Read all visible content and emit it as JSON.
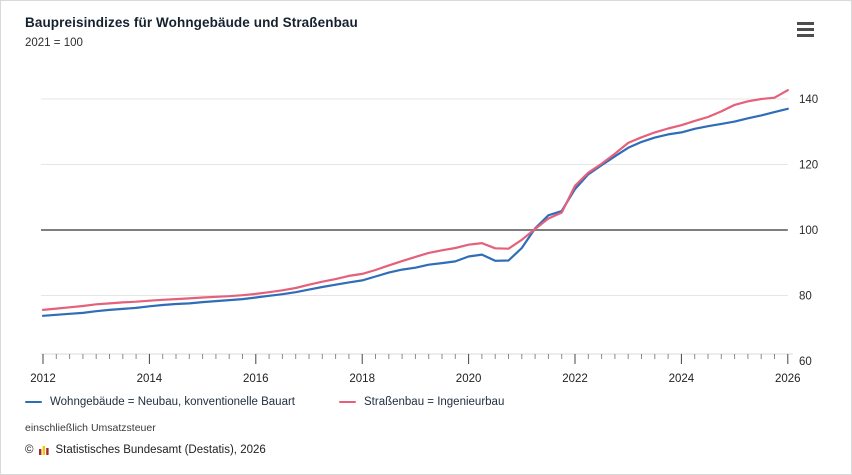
{
  "header": {
    "title": "Baupreisindizes für Wohngebäude und Straßenbau",
    "subtitle": "2021 = 100"
  },
  "menu": {
    "icon": "menu-icon"
  },
  "chart_data": {
    "type": "line",
    "title": "Baupreisindizes für Wohngebäude und Straßenbau",
    "index_note": "2021 = 100",
    "x_start": 2012,
    "x_step": 0.25,
    "xlim": [
      2012,
      2026
    ],
    "ylim": [
      60,
      145
    ],
    "x_tick_labels": [
      2012,
      2014,
      2016,
      2018,
      2020,
      2022,
      2024,
      2026
    ],
    "y_ticks": [
      60,
      80,
      100,
      120,
      140
    ],
    "baseline": 100,
    "grid": true,
    "legend_position": "bottom",
    "colors": {
      "wohngebaeude": "#2f6db8",
      "strassenbau": "#e4607b",
      "baseline_line": "#7f7f7f",
      "grid_line": "#e6e6e6"
    },
    "series": [
      {
        "name": "Wohngebäude = Neubau, konventionelle Bauart",
        "color": "#2f6db8",
        "values": [
          73.8,
          74.1,
          74.4,
          74.7,
          75.2,
          75.6,
          75.9,
          76.2,
          76.7,
          77.1,
          77.4,
          77.6,
          78.0,
          78.3,
          78.6,
          78.9,
          79.4,
          79.9,
          80.4,
          81.0,
          81.8,
          82.6,
          83.3,
          84.0,
          84.6,
          85.8,
          87.0,
          87.9,
          88.5,
          89.4,
          89.9,
          90.4,
          91.9,
          92.5,
          90.6,
          90.7,
          94.5,
          100.5,
          104.5,
          105.8,
          112.5,
          117.0,
          119.8,
          122.5,
          125.1,
          126.9,
          128.2,
          129.2,
          129.8,
          130.9,
          131.7,
          132.4,
          133.1,
          134.1,
          135.0,
          136.0,
          137.0
        ]
      },
      {
        "name": "Straßenbau = Ingenieurbau",
        "color": "#e4607b",
        "values": [
          75.6,
          76.0,
          76.4,
          76.8,
          77.3,
          77.6,
          77.9,
          78.1,
          78.4,
          78.7,
          78.9,
          79.1,
          79.4,
          79.6,
          79.8,
          80.1,
          80.5,
          81.0,
          81.6,
          82.3,
          83.3,
          84.2,
          85.0,
          86.0,
          86.6,
          87.8,
          89.2,
          90.5,
          91.8,
          93.0,
          93.8,
          94.5,
          95.5,
          96.0,
          94.4,
          94.3,
          97.0,
          100.3,
          103.5,
          105.3,
          113.5,
          117.5,
          120.2,
          123.3,
          126.6,
          128.3,
          129.8,
          131.0,
          132.0,
          133.3,
          134.5,
          136.2,
          138.2,
          139.3,
          140.0,
          140.4,
          142.7
        ]
      }
    ]
  },
  "footnotes": {
    "tax_note": "einschließlich Umsatzsteuer",
    "copyright_symbol": "©",
    "copyright_text": "Statistisches Bundesamt (Destatis), 2026"
  }
}
